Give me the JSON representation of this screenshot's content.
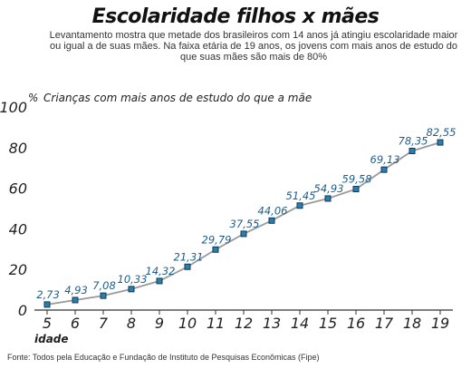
{
  "header": {
    "title": "Escolaridade filhos x mães",
    "subtitle": "Levantamento mostra que metade dos brasileiros com 14 anos já atingiu escolaridade maior ou igual a de suas mães. Na faixa etária de 19 anos, os jovens com mais anos de estudo do que suas mães são mais de 80%"
  },
  "chart_data": {
    "type": "line",
    "title": "Crianças com mais anos de estudo do que a mãe",
    "ylabel": "%",
    "xlabel": "idade",
    "x": [
      5,
      6,
      7,
      8,
      9,
      10,
      11,
      12,
      13,
      14,
      15,
      16,
      17,
      18,
      19
    ],
    "x_tick_labels": [
      "5",
      "6",
      "7",
      "8",
      "9",
      "10",
      "11",
      "12",
      "13",
      "14",
      "15",
      "16",
      "17",
      "18",
      "19"
    ],
    "y": [
      2.73,
      4.93,
      7.08,
      10.33,
      14.32,
      21.31,
      29.79,
      37.55,
      44.06,
      51.45,
      54.93,
      59.58,
      69.13,
      78.35,
      82.55
    ],
    "data_labels": [
      "2,73",
      "4,93",
      "7,08",
      "10,33",
      "14,32",
      "21,31",
      "29,79",
      "37,55",
      "44,06",
      "51,45",
      "54,93",
      "59,58",
      "69,13",
      "78,35",
      "82,55"
    ],
    "ylim": [
      0,
      100
    ],
    "y_ticks": [
      0,
      20,
      40,
      60,
      80,
      100
    ],
    "y_tick_labels": [
      "0",
      "20",
      "40",
      "60",
      "80",
      "100"
    ],
    "grid": false,
    "line_color": "#9a9a9a",
    "marker_fill": "#2a7fb0",
    "marker_stroke": "#103a55",
    "label_color": "#1e5e8c"
  },
  "footer": {
    "source": "Fonte: Todos pela Educação e Fundação de Instituto de Pesquisas Econômicas (Fipe)"
  }
}
